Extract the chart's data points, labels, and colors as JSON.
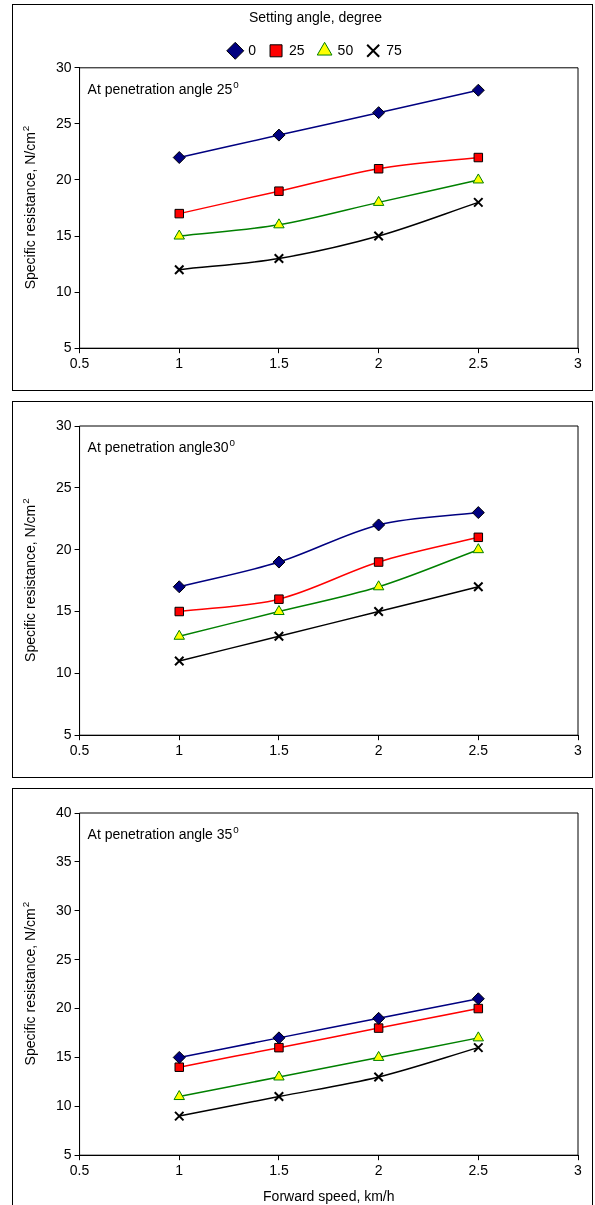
{
  "chart_data": [
    {
      "type": "line",
      "legend_title": "Setting angle, degree",
      "legend": "top",
      "ylabel": "Specific resistance, N/cm$^{2}$",
      "annotations": [
        "At penetration angle 25$^{0}$"
      ],
      "x": [
        1,
        1.5,
        2,
        2.5
      ],
      "xlim": [
        0.5,
        3
      ],
      "xticks": [
        0.5,
        1,
        1.5,
        2,
        2.5,
        3
      ],
      "ylim": [
        5,
        30
      ],
      "yticks": [
        5,
        10,
        15,
        20,
        25,
        30
      ],
      "grid": false,
      "line_style": "solid",
      "series": [
        {
          "name": "0",
          "color": "#000080",
          "marker": "diamond",
          "values": [
            22,
            24,
            26,
            28
          ]
        },
        {
          "name": "25",
          "color": "#ff0000",
          "marker": "square",
          "values": [
            17,
            19,
            21,
            22
          ]
        },
        {
          "name": "50",
          "color": "#008000",
          "marker": "triangle",
          "values": [
            15,
            16,
            18,
            20
          ]
        },
        {
          "name": "75",
          "color": "#000000",
          "marker": "cross",
          "values": [
            12,
            13,
            15,
            18
          ]
        }
      ]
    },
    {
      "type": "line",
      "ylabel": "Specific resistance, N/cm$^{2}$",
      "annotations": [
        "At penetration angle30$^{0}$"
      ],
      "x": [
        1,
        1.5,
        2,
        2.5
      ],
      "xlim": [
        0.5,
        3
      ],
      "xticks": [
        0.5,
        1,
        1.5,
        2,
        2.5,
        3
      ],
      "ylim": [
        5,
        30
      ],
      "yticks": [
        5,
        10,
        15,
        20,
        25,
        30
      ],
      "grid": false,
      "line_style": "solid",
      "series": [
        {
          "color": "#000080",
          "marker": "diamond",
          "values": [
            17,
            19,
            22,
            23
          ]
        },
        {
          "color": "#ff0000",
          "marker": "square",
          "values": [
            15,
            16,
            19,
            21
          ]
        },
        {
          "color": "#008000",
          "marker": "triangle",
          "values": [
            13,
            15,
            17,
            20
          ]
        },
        {
          "color": "#000000",
          "marker": "cross",
          "values": [
            11,
            13,
            15,
            17
          ]
        }
      ]
    },
    {
      "type": "line",
      "xlabel": "Forward speed, km/h",
      "ylabel": "Specific resistance, N/cm$^{2}$",
      "annotations": [
        "At penetration angle 35$^{0}$"
      ],
      "x": [
        1,
        1.5,
        2,
        2.5
      ],
      "xlim": [
        0.5,
        3
      ],
      "xticks": [
        0.5,
        1,
        1.5,
        2,
        2.5,
        3
      ],
      "ylim": [
        5,
        40
      ],
      "yticks": [
        5,
        10,
        15,
        20,
        25,
        30,
        35,
        40
      ],
      "grid": false,
      "line_style": "solid",
      "series": [
        {
          "color": "#000080",
          "marker": "diamond",
          "values": [
            15,
            17,
            19,
            21
          ]
        },
        {
          "color": "#ff0000",
          "marker": "square",
          "values": [
            14,
            16,
            18,
            20
          ]
        },
        {
          "color": "#008000",
          "marker": "triangle",
          "values": [
            11,
            13,
            15,
            17
          ]
        },
        {
          "color": "#000000",
          "marker": "cross",
          "values": [
            9,
            11,
            13,
            16
          ]
        }
      ]
    }
  ]
}
